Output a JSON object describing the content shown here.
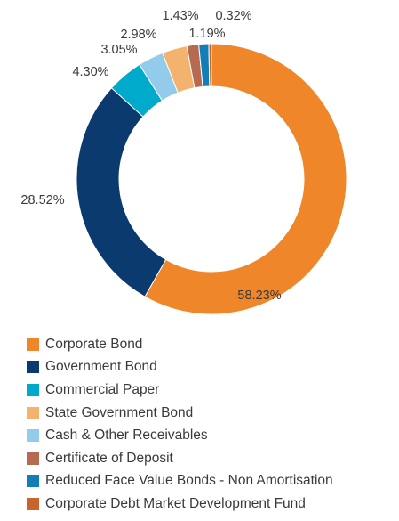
{
  "chart_data": {
    "type": "pie",
    "donut": true,
    "categories": [
      "Corporate Bond",
      "Government Bond",
      "Commercial Paper",
      "State Government Bond",
      "Cash & Other Receivables",
      "Certificate of Deposit",
      "Reduced Face Value Bonds - Non Amortisation",
      "Corporate Debt Market Development Fund"
    ],
    "values": [
      58.23,
      28.52,
      4.3,
      2.98,
      3.05,
      1.43,
      1.19,
      0.32
    ],
    "value_labels": [
      "58.23%",
      "28.52%",
      "4.30%",
      "2.98%",
      "3.05%",
      "1.43%",
      "1.19%",
      "0.32%"
    ],
    "colors": [
      "#F0862A",
      "#0B3A6E",
      "#00AACB",
      "#F3B36E",
      "#93CCEA",
      "#B76A52",
      "#0F7FB6",
      "#C8642C"
    ],
    "legend_position": "bottom-left"
  }
}
